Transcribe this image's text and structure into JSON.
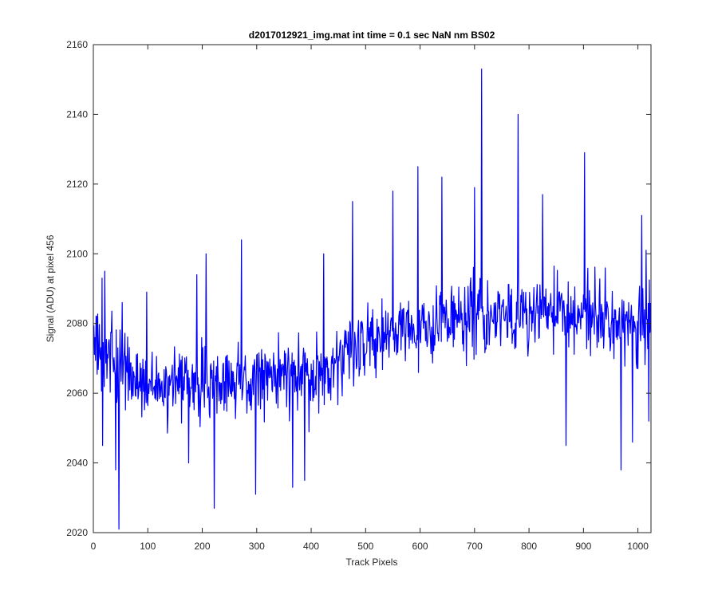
{
  "chart_data": {
    "type": "line",
    "title": "d2017012921_img.mat int time = 0.1 sec  NaN nm BS02",
    "xlabel": "Track Pixels",
    "ylabel": "Signal (ADU) at pixel 456",
    "xlim": [
      0,
      1024
    ],
    "ylim": [
      2020,
      2160
    ],
    "xticks": [
      0,
      100,
      200,
      300,
      400,
      500,
      600,
      700,
      800,
      900,
      1000
    ],
    "yticks": [
      2020,
      2040,
      2060,
      2080,
      2100,
      2120,
      2140,
      2160
    ],
    "grid": false,
    "legend": "none",
    "series": [
      {
        "color": "#0000ff",
        "trend": [
          [
            1,
            2074
          ],
          [
            100,
            2062
          ],
          [
            200,
            2062
          ],
          [
            300,
            2064
          ],
          [
            400,
            2066
          ],
          [
            500,
            2074
          ],
          [
            600,
            2080
          ],
          [
            700,
            2082
          ],
          [
            800,
            2083
          ],
          [
            900,
            2082
          ],
          [
            1024,
            2080
          ]
        ],
        "spread": 9,
        "peaks": [
          {
            "x": 6,
            "y": 2082
          },
          {
            "x": 16,
            "y": 2093
          },
          {
            "x": 21,
            "y": 2095
          },
          {
            "x": 17,
            "y": 2045
          },
          {
            "x": 47,
            "y": 2021
          },
          {
            "x": 41,
            "y": 2038
          },
          {
            "x": 53,
            "y": 2086
          },
          {
            "x": 98,
            "y": 2089
          },
          {
            "x": 175,
            "y": 2040
          },
          {
            "x": 190,
            "y": 2094
          },
          {
            "x": 207,
            "y": 2100
          },
          {
            "x": 222,
            "y": 2027
          },
          {
            "x": 272,
            "y": 2104
          },
          {
            "x": 298,
            "y": 2031
          },
          {
            "x": 366,
            "y": 2033
          },
          {
            "x": 388,
            "y": 2035
          },
          {
            "x": 423,
            "y": 2100
          },
          {
            "x": 476,
            "y": 2115
          },
          {
            "x": 550,
            "y": 2118
          },
          {
            "x": 596,
            "y": 2125
          },
          {
            "x": 640,
            "y": 2122
          },
          {
            "x": 700,
            "y": 2119
          },
          {
            "x": 713,
            "y": 2153
          },
          {
            "x": 780,
            "y": 2140
          },
          {
            "x": 825,
            "y": 2117
          },
          {
            "x": 868,
            "y": 2045
          },
          {
            "x": 902,
            "y": 2129
          },
          {
            "x": 969,
            "y": 2038
          },
          {
            "x": 990,
            "y": 2046
          },
          {
            "x": 1007,
            "y": 2111
          },
          {
            "x": 1015,
            "y": 2101
          },
          {
            "x": 1020,
            "y": 2052
          }
        ]
      }
    ]
  }
}
